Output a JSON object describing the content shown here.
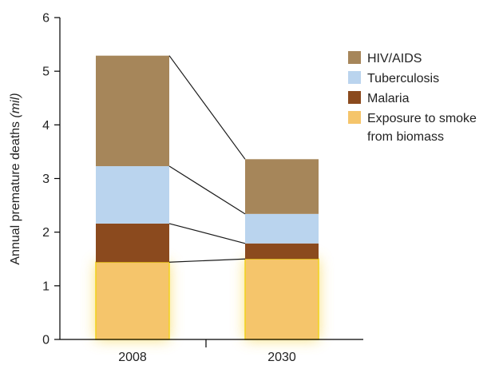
{
  "chart_data": {
    "type": "bar",
    "stacked": true,
    "categories": [
      "2008",
      "2030"
    ],
    "series": [
      {
        "name": "Exposure to smoke from biomass",
        "values": [
          1.44,
          1.5
        ],
        "color": "#F5C56B",
        "glow": "#F7D44A"
      },
      {
        "name": "Malaria",
        "values": [
          0.72,
          0.29
        ],
        "color": "#8B4A1E"
      },
      {
        "name": "Tuberculosis",
        "values": [
          1.07,
          0.55
        ],
        "color": "#BAD4EE"
      },
      {
        "name": "HIV/AIDS",
        "values": [
          2.06,
          1.02
        ],
        "color": "#A6865A"
      }
    ],
    "ylabel_main": "Annual premature deaths",
    "ylabel_unit": "(mil)",
    "ylim": [
      0,
      6
    ],
    "yticks": [
      0,
      1,
      2,
      3,
      4,
      5,
      6
    ],
    "legend_position": "top-right",
    "legend": [
      {
        "lines": [
          "HIV/AIDS"
        ],
        "color": "#A6865A"
      },
      {
        "lines": [
          "Tuberculosis"
        ],
        "color": "#BAD4EE"
      },
      {
        "lines": [
          "Malaria"
        ],
        "color": "#8B4A1E"
      },
      {
        "lines": [
          "Exposure to smoke",
          "from biomass"
        ],
        "color": "#F5C56B"
      }
    ]
  }
}
